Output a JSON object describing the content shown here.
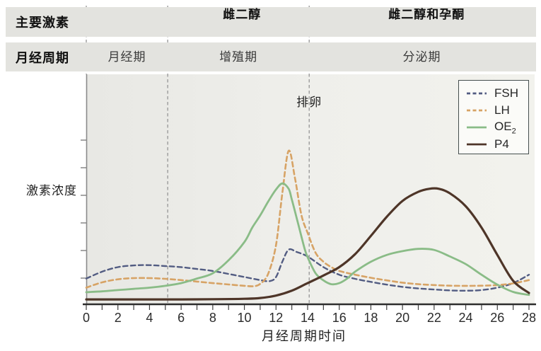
{
  "header": {
    "main_hormones_label": "主要激素",
    "cycle_label": "月经周期",
    "divider_days": [
      0,
      5.15,
      14.1
    ],
    "hormone_spans": [
      {
        "label": "雌二醇",
        "start_day": 5.6,
        "end_day": 14.1
      },
      {
        "label": "雌二醇和孕酮",
        "start_day": 14.8,
        "end_day": 28.25
      }
    ],
    "phases": [
      {
        "label": "月经期",
        "start_day": 0,
        "end_day": 5.15
      },
      {
        "label": "增殖期",
        "start_day": 5.15,
        "end_day": 14.1
      },
      {
        "label": "分泌期",
        "start_day": 14.1,
        "end_day": 28.35
      }
    ]
  },
  "annotations": {
    "ovulation_label": "排卵",
    "ovulation_day": 14.1
  },
  "colors": {
    "bar_bg": "#e3e3df",
    "plot_bg_left": "#e9e9e5",
    "plot_bg_right": "#f2f2ed",
    "arrow": "#3d4747",
    "axis": "#2d2d2d",
    "y_axis": "#8b8b8b",
    "divider": "#9b9b9b",
    "fsh": "#525c82",
    "lh": "#d7a365",
    "oe2": "#8abc87",
    "p4": "#4e3528"
  },
  "chart_data": {
    "type": "line",
    "title": "",
    "xlabel": "月经周期时间",
    "ylabel": "激素浓度",
    "xlim": [
      0,
      28
    ],
    "x_ticks": [
      0,
      2,
      4,
      6,
      8,
      10,
      12,
      14,
      16,
      18,
      20,
      22,
      24,
      26,
      28
    ],
    "x_minor_tick_every": 1,
    "ylim": [
      0,
      105
    ],
    "y_axis_labeled": false,
    "grid": false,
    "legend_position": "top-right",
    "y_unit": "relative concentration (unlabeled axis)",
    "series": [
      {
        "name": "FSH",
        "sub": "",
        "color": "#525c82",
        "dash": true,
        "points": [
          [
            0,
            16
          ],
          [
            1,
            20.5
          ],
          [
            2,
            23.5
          ],
          [
            3,
            24.6
          ],
          [
            4,
            24.8
          ],
          [
            5,
            24.2
          ],
          [
            6,
            23.5
          ],
          [
            7,
            22.3
          ],
          [
            8,
            21
          ],
          [
            9,
            19
          ],
          [
            10,
            17
          ],
          [
            11,
            15
          ],
          [
            11.6,
            14.3
          ],
          [
            12,
            17
          ],
          [
            12.4,
            27
          ],
          [
            12.8,
            35
          ],
          [
            13.3,
            33.5
          ],
          [
            14,
            30.5
          ],
          [
            15,
            23.5
          ],
          [
            16,
            18.5
          ],
          [
            17,
            15.8
          ],
          [
            18,
            13.8
          ],
          [
            19,
            12
          ],
          [
            20,
            10.5
          ],
          [
            21,
            9.5
          ],
          [
            22,
            8.8
          ],
          [
            23,
            8.2
          ],
          [
            24,
            8
          ],
          [
            25,
            8.4
          ],
          [
            26,
            10
          ],
          [
            27,
            13
          ],
          [
            28,
            18.5
          ]
        ]
      },
      {
        "name": "LH",
        "sub": "",
        "color": "#d7a365",
        "dash": true,
        "points": [
          [
            0,
            10
          ],
          [
            1,
            13.5
          ],
          [
            2,
            15.5
          ],
          [
            3,
            16.3
          ],
          [
            4,
            16.3
          ],
          [
            5,
            15.8
          ],
          [
            6,
            15
          ],
          [
            7,
            14
          ],
          [
            8,
            13
          ],
          [
            9,
            12.1
          ],
          [
            10,
            11.2
          ],
          [
            10.6,
            11
          ],
          [
            11,
            12.5
          ],
          [
            11.5,
            19
          ],
          [
            12,
            38
          ],
          [
            12.4,
            72
          ],
          [
            12.8,
            100
          ],
          [
            13.2,
            82
          ],
          [
            13.6,
            58
          ],
          [
            14,
            46
          ],
          [
            14.5,
            33
          ],
          [
            15,
            27
          ],
          [
            15.5,
            23.5
          ],
          [
            16,
            21
          ],
          [
            17,
            18.5
          ],
          [
            18,
            16.5
          ],
          [
            19,
            14.8
          ],
          [
            20,
            13.3
          ],
          [
            21,
            12.3
          ],
          [
            22,
            11.7
          ],
          [
            23,
            11.3
          ],
          [
            24,
            11.2
          ],
          [
            25,
            11.3
          ],
          [
            26,
            11.7
          ],
          [
            27,
            12.8
          ],
          [
            28,
            15
          ]
        ]
      },
      {
        "name": "OE",
        "sub": "2",
        "color": "#8abc87",
        "dash": false,
        "points": [
          [
            0,
            7
          ],
          [
            1,
            7.6
          ],
          [
            2,
            8.4
          ],
          [
            3,
            9.2
          ],
          [
            4,
            10
          ],
          [
            5,
            11.2
          ],
          [
            6,
            13
          ],
          [
            7,
            16
          ],
          [
            8,
            19.5
          ],
          [
            9,
            28
          ],
          [
            10,
            40
          ],
          [
            10.5,
            49.5
          ],
          [
            11,
            57.5
          ],
          [
            11.5,
            66.5
          ],
          [
            12,
            74.5
          ],
          [
            12.4,
            78.5
          ],
          [
            12.8,
            75
          ],
          [
            13,
            68
          ],
          [
            13.4,
            52
          ],
          [
            13.8,
            36
          ],
          [
            14,
            30
          ],
          [
            14.5,
            19.5
          ],
          [
            15,
            14.8
          ],
          [
            15.5,
            12.3
          ],
          [
            16,
            13
          ],
          [
            16.5,
            16
          ],
          [
            17,
            20.5
          ],
          [
            18,
            27
          ],
          [
            19,
            31.5
          ],
          [
            20,
            34
          ],
          [
            21,
            35.5
          ],
          [
            22,
            34.8
          ],
          [
            23,
            30.5
          ],
          [
            24,
            25.5
          ],
          [
            25,
            18.5
          ],
          [
            26,
            12
          ],
          [
            27,
            7.2
          ],
          [
            28,
            5.2
          ]
        ]
      },
      {
        "name": "P4",
        "sub": "",
        "color": "#4e3528",
        "dash": false,
        "points": [
          [
            0,
            2.3
          ],
          [
            2,
            2.3
          ],
          [
            4,
            2.3
          ],
          [
            6,
            2.3
          ],
          [
            8,
            2.4
          ],
          [
            10,
            2.7
          ],
          [
            11,
            3.2
          ],
          [
            12,
            4.8
          ],
          [
            13,
            8
          ],
          [
            14,
            13
          ],
          [
            15,
            18
          ],
          [
            16,
            23.5
          ],
          [
            17,
            32
          ],
          [
            18,
            44
          ],
          [
            19,
            56.5
          ],
          [
            20,
            67
          ],
          [
            21,
            73
          ],
          [
            21.7,
            75
          ],
          [
            22.3,
            75
          ],
          [
            23,
            72
          ],
          [
            24,
            63.5
          ],
          [
            25,
            49.5
          ],
          [
            26,
            31.5
          ],
          [
            27,
            14.5
          ],
          [
            28,
            6.5
          ]
        ]
      }
    ]
  }
}
